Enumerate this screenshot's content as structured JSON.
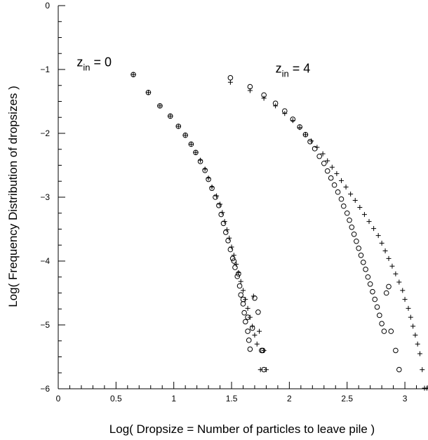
{
  "chart_data": {
    "type": "scatter",
    "title": "",
    "xlabel": "Log( Dropsize = Number of particles to leave pile )",
    "ylabel": "Log( Frequency Distribution of dropsizes )",
    "xlim": [
      0,
      3.2
    ],
    "ylim": [
      -6,
      0
    ],
    "x_ticks": [
      0,
      0.5,
      1,
      1.5,
      2,
      2.5,
      3
    ],
    "x_tick_labels": [
      "0",
      "0.5",
      "1",
      "1.5",
      "2",
      "2.5",
      "3"
    ],
    "y_ticks": [
      -6,
      -5,
      -4,
      -3,
      -2,
      -1,
      0
    ],
    "y_tick_labels": [
      "−6",
      "−5",
      "−4",
      "−3",
      "−2",
      "−1",
      "0"
    ],
    "grid": false,
    "annotations": [
      {
        "main": "z",
        "sub": "in",
        "rest": " = 0",
        "x": 0.16,
        "y": -0.95
      },
      {
        "main": "z",
        "sub": "in",
        "rest": " = 4",
        "x": 1.88,
        "y": -1.05
      }
    ],
    "series": [
      {
        "marker": "circle",
        "points": [
          [
            0.65,
            -1.08
          ],
          [
            0.78,
            -1.36
          ],
          [
            0.88,
            -1.57
          ],
          [
            0.97,
            -1.73
          ],
          [
            1.04,
            -1.89
          ],
          [
            1.1,
            -2.03
          ],
          [
            1.15,
            -2.17
          ],
          [
            1.19,
            -2.3
          ],
          [
            1.23,
            -2.44
          ],
          [
            1.27,
            -2.58
          ],
          [
            1.3,
            -2.72
          ],
          [
            1.33,
            -2.86
          ],
          [
            1.36,
            -3.0
          ],
          [
            1.39,
            -3.13
          ],
          [
            1.41,
            -3.27
          ],
          [
            1.43,
            -3.41
          ],
          [
            1.45,
            -3.55
          ],
          [
            1.47,
            -3.68
          ],
          [
            1.49,
            -3.82
          ],
          [
            1.51,
            -3.96
          ],
          [
            1.53,
            -4.1
          ],
          [
            1.55,
            -4.24
          ],
          [
            1.57,
            -4.39
          ],
          [
            1.58,
            -4.53
          ],
          [
            1.6,
            -4.67
          ],
          [
            1.61,
            -4.81
          ],
          [
            1.62,
            -4.95
          ],
          [
            1.64,
            -5.1
          ],
          [
            1.65,
            -5.24
          ],
          [
            1.66,
            -5.38
          ],
          [
            1.52,
            -4.0
          ],
          [
            1.56,
            -4.2
          ],
          [
            1.6,
            -4.6
          ],
          [
            1.64,
            -4.88
          ],
          [
            1.68,
            -5.05
          ],
          [
            1.7,
            -4.58
          ],
          [
            1.73,
            -4.8
          ],
          [
            1.76,
            -5.4
          ],
          [
            1.78,
            -5.7
          ],
          [
            1.77,
            -5.4
          ]
        ]
      },
      {
        "marker": "plus",
        "points": [
          [
            0.65,
            -1.08
          ],
          [
            0.78,
            -1.36
          ],
          [
            0.88,
            -1.57
          ],
          [
            0.97,
            -1.73
          ],
          [
            1.04,
            -1.89
          ],
          [
            1.1,
            -2.03
          ],
          [
            1.15,
            -2.17
          ],
          [
            1.19,
            -2.3
          ],
          [
            1.23,
            -2.42
          ],
          [
            1.27,
            -2.56
          ],
          [
            1.3,
            -2.7
          ],
          [
            1.33,
            -2.84
          ],
          [
            1.37,
            -2.98
          ],
          [
            1.4,
            -3.11
          ],
          [
            1.42,
            -3.24
          ],
          [
            1.44,
            -3.38
          ],
          [
            1.46,
            -3.51
          ],
          [
            1.48,
            -3.64
          ],
          [
            1.5,
            -3.78
          ],
          [
            1.52,
            -3.91
          ],
          [
            1.54,
            -4.05
          ],
          [
            1.56,
            -4.18
          ],
          [
            1.58,
            -4.32
          ],
          [
            1.6,
            -4.46
          ],
          [
            1.62,
            -4.6
          ],
          [
            1.64,
            -4.74
          ],
          [
            1.66,
            -4.88
          ],
          [
            1.68,
            -5.02
          ],
          [
            1.7,
            -5.16
          ],
          [
            1.72,
            -5.3
          ],
          [
            1.75,
            -5.7
          ],
          [
            1.78,
            -5.4
          ],
          [
            1.8,
            -5.7
          ],
          [
            1.69,
            -4.55
          ],
          [
            1.74,
            -5.1
          ]
        ]
      },
      {
        "marker": "circle",
        "points": [
          [
            1.49,
            -1.13
          ],
          [
            1.66,
            -1.27
          ],
          [
            1.78,
            -1.4
          ],
          [
            1.88,
            -1.53
          ],
          [
            1.96,
            -1.65
          ],
          [
            2.03,
            -1.78
          ],
          [
            2.09,
            -1.9
          ],
          [
            2.14,
            -2.02
          ],
          [
            2.18,
            -2.13
          ],
          [
            2.22,
            -2.24
          ],
          [
            2.26,
            -2.36
          ],
          [
            2.3,
            -2.47
          ],
          [
            2.33,
            -2.59
          ],
          [
            2.36,
            -2.7
          ],
          [
            2.39,
            -2.81
          ],
          [
            2.42,
            -2.92
          ],
          [
            2.45,
            -3.03
          ],
          [
            2.47,
            -3.14
          ],
          [
            2.5,
            -3.25
          ],
          [
            2.52,
            -3.36
          ],
          [
            2.54,
            -3.47
          ],
          [
            2.56,
            -3.58
          ],
          [
            2.58,
            -3.69
          ],
          [
            2.6,
            -3.8
          ],
          [
            2.62,
            -3.91
          ],
          [
            2.64,
            -4.02
          ],
          [
            2.66,
            -4.13
          ],
          [
            2.68,
            -4.25
          ],
          [
            2.7,
            -4.36
          ],
          [
            2.72,
            -4.48
          ],
          [
            2.74,
            -4.6
          ],
          [
            2.76,
            -4.72
          ],
          [
            2.78,
            -4.85
          ],
          [
            2.8,
            -4.98
          ],
          [
            2.82,
            -5.1
          ],
          [
            2.84,
            -4.5
          ],
          [
            2.86,
            -4.4
          ],
          [
            2.88,
            -5.1
          ],
          [
            2.92,
            -5.4
          ],
          [
            2.95,
            -5.7
          ]
        ]
      },
      {
        "marker": "plus",
        "points": [
          [
            1.49,
            -1.2
          ],
          [
            1.66,
            -1.33
          ],
          [
            1.78,
            -1.45
          ],
          [
            1.88,
            -1.57
          ],
          [
            1.96,
            -1.69
          ],
          [
            2.03,
            -1.8
          ],
          [
            2.09,
            -1.91
          ],
          [
            2.14,
            -2.02
          ],
          [
            2.19,
            -2.12
          ],
          [
            2.24,
            -2.22
          ],
          [
            2.29,
            -2.32
          ],
          [
            2.33,
            -2.43
          ],
          [
            2.37,
            -2.53
          ],
          [
            2.41,
            -2.63
          ],
          [
            2.45,
            -2.74
          ],
          [
            2.49,
            -2.84
          ],
          [
            2.53,
            -2.95
          ],
          [
            2.57,
            -3.05
          ],
          [
            2.61,
            -3.16
          ],
          [
            2.65,
            -3.27
          ],
          [
            2.69,
            -3.38
          ],
          [
            2.73,
            -3.49
          ],
          [
            2.77,
            -3.6
          ],
          [
            2.8,
            -3.72
          ],
          [
            2.83,
            -3.84
          ],
          [
            2.86,
            -3.96
          ],
          [
            2.89,
            -4.08
          ],
          [
            2.92,
            -4.2
          ],
          [
            2.95,
            -4.33
          ],
          [
            2.98,
            -4.46
          ],
          [
            3.0,
            -4.6
          ],
          [
            3.03,
            -4.74
          ],
          [
            3.05,
            -4.88
          ],
          [
            3.07,
            -5.02
          ],
          [
            3.09,
            -5.16
          ],
          [
            3.11,
            -5.3
          ],
          [
            3.13,
            -5.45
          ],
          [
            3.15,
            -5.7
          ],
          [
            3.17,
            -5.99
          ],
          [
            3.19,
            -5.99
          ]
        ]
      }
    ]
  }
}
